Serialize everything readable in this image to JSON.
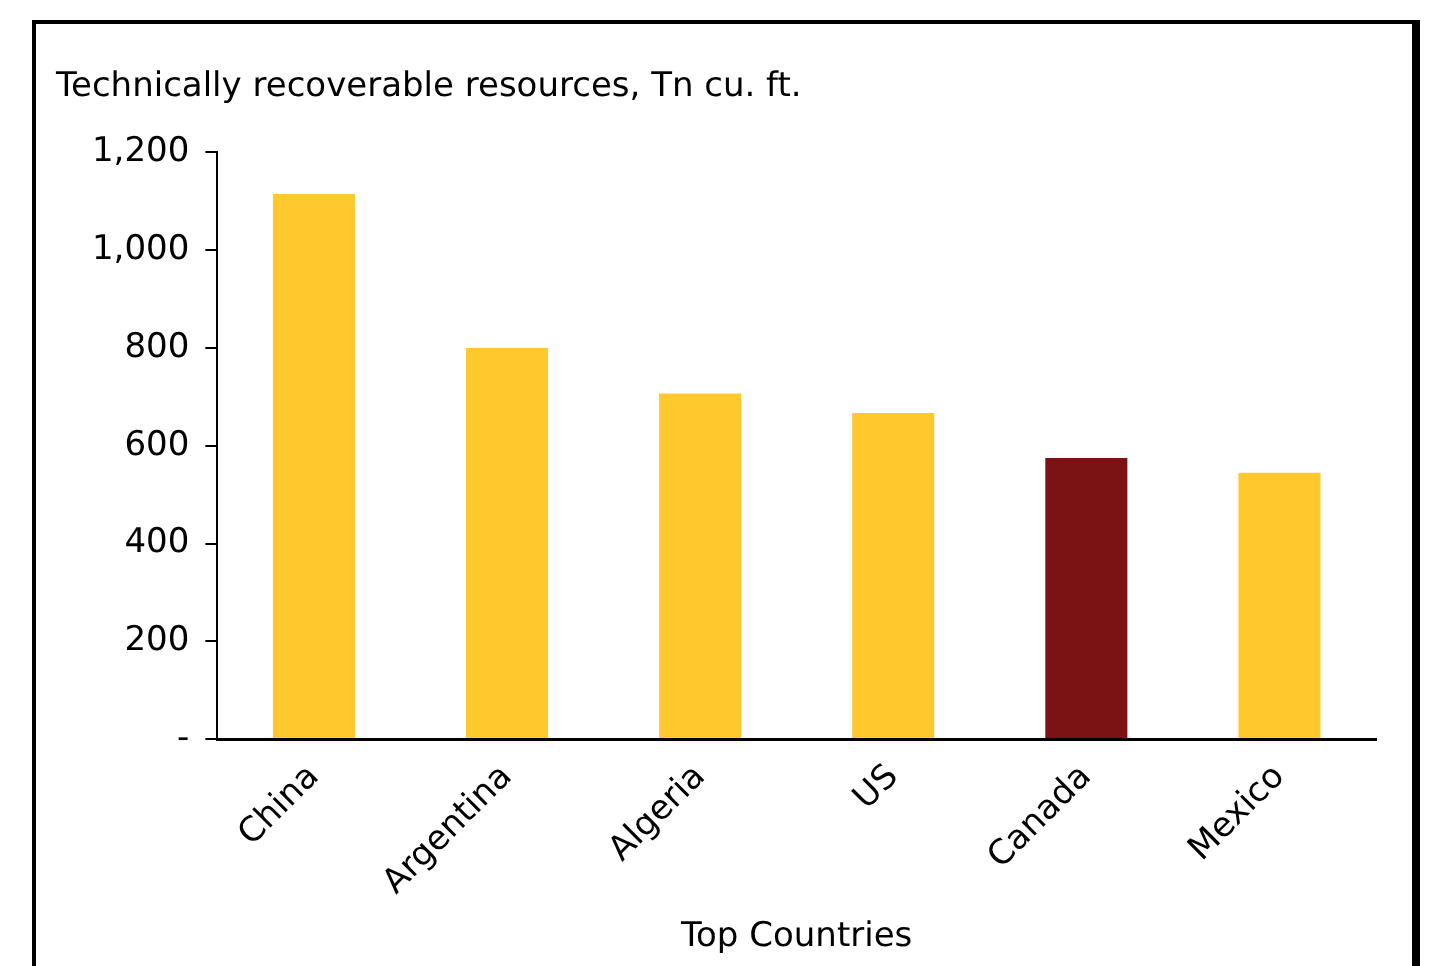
{
  "chart_data": {
    "type": "bar",
    "title": "Technically recoverable resources, Tn cu. ft.",
    "xlabel": "Top Countries",
    "categories": [
      "China",
      "Argentina",
      "Algeria",
      "US",
      "Canada",
      "Mexico"
    ],
    "values": [
      1115,
      800,
      707,
      667,
      575,
      545
    ],
    "colors": [
      "#ffc92e",
      "#ffc92e",
      "#ffc92e",
      "#ffc92e",
      "#7b1315",
      "#ffc92e"
    ],
    "ylim": [
      0,
      1200
    ],
    "yticks": [
      {
        "value": 0,
        "label": "-"
      },
      {
        "value": 200,
        "label": "200"
      },
      {
        "value": 400,
        "label": "400"
      },
      {
        "value": 600,
        "label": "600"
      },
      {
        "value": 800,
        "label": "800"
      },
      {
        "value": 1000,
        "label": "1,000"
      },
      {
        "value": 1200,
        "label": "1,200"
      }
    ],
    "grid": false,
    "legend": false
  }
}
